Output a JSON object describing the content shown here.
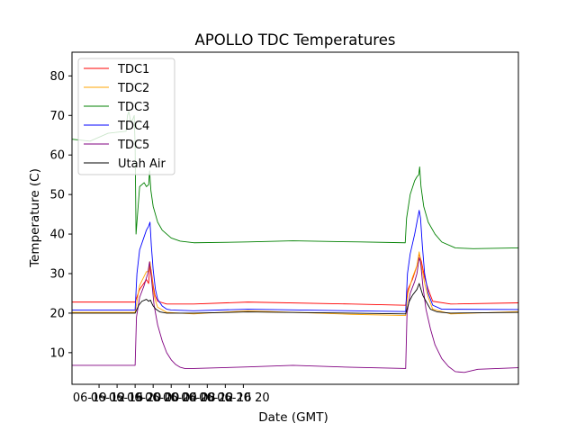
{
  "chart_data": {
    "type": "line",
    "title": "APOLLO TDC Temperatures",
    "xlabel": "Date (GMT)",
    "ylabel": "Temperature (C)",
    "xlim": [
      6.0,
      105.0
    ],
    "ylim": [
      2,
      86
    ],
    "x_unit": "hours since 06-19 00:00 GMT",
    "grid": false,
    "legend_position": "top-left",
    "x_ticks": [
      {
        "value": 12,
        "label": "06-19 12"
      },
      {
        "value": 16,
        "label": "06-19 16"
      },
      {
        "value": 20,
        "label": "06-19 20"
      },
      {
        "value": 24,
        "label": "06-20 00"
      },
      {
        "value": 28,
        "label": "06-20 04"
      },
      {
        "value": 32,
        "label": "06-20 08"
      },
      {
        "value": 36,
        "label": "06-20 12"
      },
      {
        "value": 40,
        "label": "06-20 16"
      },
      {
        "value": 44,
        "label": "06-20 20"
      }
    ],
    "y_ticks": [
      10,
      20,
      30,
      40,
      50,
      60,
      70,
      80
    ],
    "series": [
      {
        "name": "TDC1",
        "color": "#ff0000",
        "x": [
          6.0,
          20.0,
          21.0,
          22.5,
          23.0,
          23.3,
          23.6,
          24.0,
          24.4,
          25.0,
          27.0,
          33.0,
          45.0,
          68.0,
          80.0,
          80.5,
          81.5,
          82.5,
          83.0,
          83.5,
          84.2,
          85.0,
          86.0,
          90.0,
          105.0
        ],
        "y": [
          22.8,
          22.8,
          26.0,
          28.5,
          27.5,
          32.5,
          30.5,
          27.0,
          24.5,
          23.0,
          22.3,
          22.3,
          22.8,
          22.3,
          22.0,
          26.0,
          28.5,
          32.0,
          35.0,
          33.0,
          29.0,
          26.0,
          23.0,
          22.3,
          22.6
        ]
      },
      {
        "name": "TDC2",
        "color": "#ffa500",
        "x": [
          6.0,
          20.0,
          21.0,
          22.5,
          23.0,
          23.3,
          23.6,
          24.0,
          24.4,
          25.0,
          27.0,
          33.0,
          45.0,
          68.0,
          80.0,
          80.5,
          81.5,
          82.5,
          83.0,
          83.5,
          84.2,
          85.0,
          86.0,
          90.0,
          105.0
        ],
        "y": [
          20.2,
          20.2,
          27.0,
          30.5,
          30.5,
          33.0,
          30.0,
          26.0,
          23.5,
          21.5,
          20.2,
          19.8,
          20.6,
          19.7,
          19.4,
          25.0,
          29.0,
          32.0,
          35.5,
          32.0,
          27.5,
          24.0,
          21.0,
          19.8,
          20.4
        ]
      },
      {
        "name": "TDC3",
        "color": "#008000",
        "x": [
          6.0,
          10.0,
          14.0,
          18.0,
          18.3,
          18.6,
          19.0,
          19.4,
          19.8,
          20.0,
          20.2,
          21.0,
          22.0,
          22.5,
          23.0,
          23.2,
          23.5,
          24.0,
          25.0,
          26.0,
          28.0,
          30.0,
          33.0,
          45.0,
          55.0,
          70.0,
          79.9,
          80.2,
          81.0,
          82.0,
          82.5,
          82.9,
          83.1,
          83.4,
          84.0,
          85.0,
          86.5,
          88.0,
          91.0,
          95.0,
          105.0
        ],
        "y": [
          64.0,
          63.5,
          65.5,
          66.0,
          70.0,
          71.0,
          68.5,
          68.8,
          70.0,
          62.0,
          40.0,
          52.0,
          53.0,
          52.0,
          52.5,
          56.0,
          51.0,
          47.0,
          43.0,
          41.0,
          39.0,
          38.2,
          37.8,
          38.0,
          38.3,
          38.0,
          37.8,
          44.0,
          50.0,
          53.5,
          54.5,
          55.0,
          57.0,
          52.0,
          47.0,
          43.0,
          40.0,
          38.0,
          36.5,
          36.3,
          36.5
        ]
      },
      {
        "name": "TDC4",
        "color": "#0000ff",
        "x": [
          6.0,
          20.0,
          20.4,
          21.0,
          22.5,
          23.0,
          23.3,
          23.6,
          24.0,
          24.5,
          25.0,
          26.0,
          27.0,
          28.0,
          33.0,
          45.0,
          68.0,
          80.0,
          80.4,
          81.0,
          82.0,
          82.5,
          83.0,
          83.3,
          83.7,
          84.2,
          85.0,
          86.0,
          88.0,
          105.0
        ],
        "y": [
          20.8,
          20.8,
          30.0,
          36.0,
          41.0,
          42.0,
          43.0,
          37.0,
          31.0,
          26.0,
          23.5,
          21.8,
          21.0,
          20.8,
          20.6,
          21.0,
          20.6,
          20.4,
          30.0,
          35.0,
          40.0,
          43.0,
          46.0,
          44.0,
          37.0,
          30.0,
          25.0,
          22.0,
          21.0,
          20.9
        ]
      },
      {
        "name": "TDC5",
        "color": "#800080",
        "x": [
          6.0,
          20.0,
          20.3,
          21.0,
          22.0,
          22.8,
          23.2,
          23.6,
          24.2,
          25.0,
          26.0,
          27.0,
          28.0,
          29.0,
          30.0,
          31.0,
          33.0,
          45.0,
          55.0,
          68.0,
          80.0,
          80.3,
          81.0,
          82.0,
          82.5,
          83.0,
          83.3,
          83.8,
          84.5,
          85.5,
          86.5,
          88.0,
          89.5,
          91.0,
          93.0,
          96.0,
          105.0
        ],
        "y": [
          6.8,
          6.8,
          19.0,
          24.0,
          27.0,
          30.0,
          33.0,
          29.0,
          22.0,
          17.0,
          13.0,
          10.0,
          8.2,
          7.0,
          6.3,
          6.0,
          6.0,
          6.4,
          6.8,
          6.3,
          6.0,
          20.0,
          25.0,
          28.0,
          30.0,
          34.0,
          33.0,
          27.0,
          21.0,
          16.0,
          12.0,
          8.5,
          6.5,
          5.2,
          5.0,
          5.8,
          6.2
        ]
      },
      {
        "name": "Utah Air",
        "color": "#000000",
        "x": [
          6.0,
          20.0,
          20.8,
          21.5,
          22.5,
          23.0,
          23.4,
          23.7,
          24.0,
          24.6,
          25.5,
          27.0,
          33.0,
          45.0,
          68.0,
          80.0,
          80.8,
          81.5,
          82.5,
          83.0,
          83.4,
          83.8,
          84.5,
          85.5,
          87.0,
          90.0,
          105.0
        ],
        "y": [
          20.0,
          20.0,
          22.0,
          23.0,
          23.5,
          23.0,
          23.3,
          22.5,
          21.8,
          21.0,
          20.3,
          20.0,
          20.0,
          20.3,
          20.0,
          19.8,
          23.0,
          24.5,
          26.0,
          27.5,
          26.0,
          24.5,
          23.0,
          21.0,
          20.3,
          20.0,
          20.2
        ]
      }
    ]
  }
}
